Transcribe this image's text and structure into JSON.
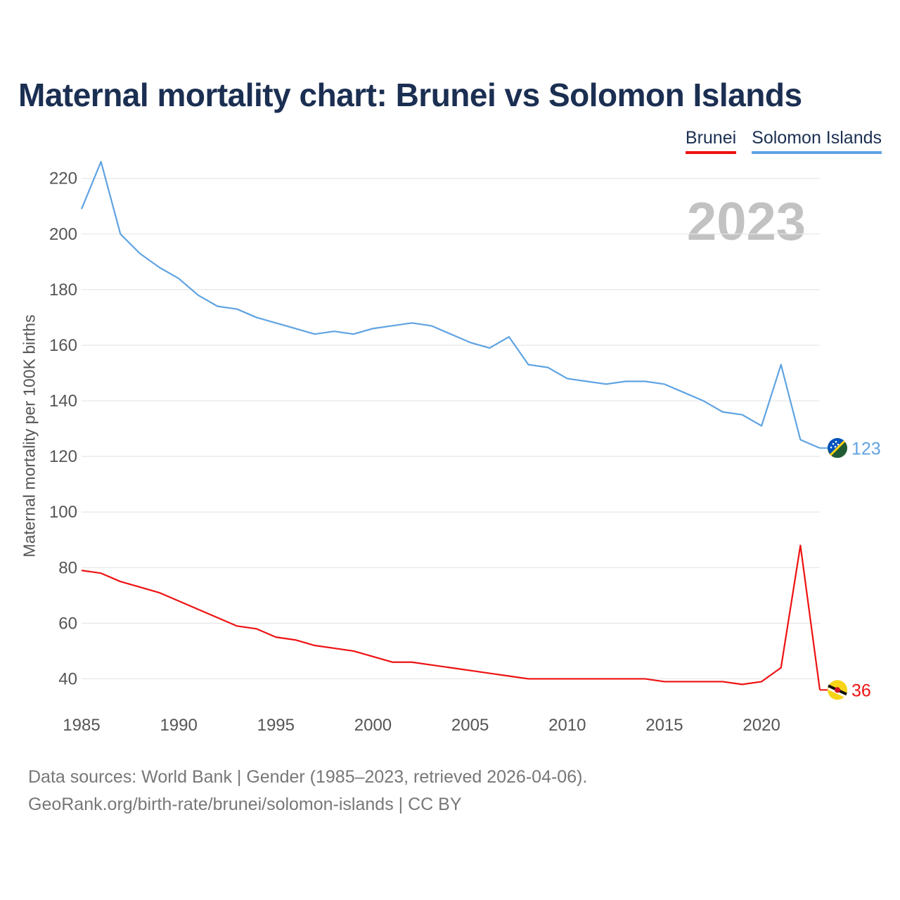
{
  "page": {
    "title": "Maternal mortality chart: Brunei vs Solomon Islands",
    "year_label": "2023",
    "source_line1": "Data sources: World Bank | Gender (1985–2023, retrieved 2026-04-06).",
    "source_line2": "GeoRank.org/birth-rate/brunei/solomon-islands | CC BY"
  },
  "legend": [
    {
      "label": "Brunei",
      "color": "#ee1111"
    },
    {
      "label": "Solomon Islands",
      "color": "#5fa3e2"
    }
  ],
  "chart_data": {
    "type": "line",
    "title": "Maternal mortality chart: Brunei vs Solomon Islands",
    "xlabel": "",
    "ylabel": "Maternal mortality per 100K births",
    "x": [
      1985,
      1986,
      1987,
      1988,
      1989,
      1990,
      1991,
      1992,
      1993,
      1994,
      1995,
      1996,
      1997,
      1998,
      1999,
      2000,
      2001,
      2002,
      2003,
      2004,
      2005,
      2006,
      2007,
      2008,
      2009,
      2010,
      2011,
      2012,
      2013,
      2014,
      2015,
      2016,
      2017,
      2018,
      2019,
      2020,
      2021,
      2022,
      2023
    ],
    "xticks": [
      1985,
      1990,
      1995,
      2000,
      2005,
      2010,
      2015,
      2020
    ],
    "yticks": [
      40,
      60,
      80,
      100,
      120,
      140,
      160,
      180,
      200,
      220
    ],
    "xlim": [
      1985,
      2023
    ],
    "ylim": [
      30,
      226
    ],
    "grid": true,
    "series": [
      {
        "name": "Brunei",
        "color": "#ee1111",
        "end_label": "36",
        "values": [
          79,
          78,
          75,
          73,
          71,
          68,
          65,
          62,
          59,
          58,
          55,
          54,
          52,
          51,
          50,
          48,
          46,
          46,
          45,
          44,
          43,
          42,
          41,
          40,
          40,
          40,
          40,
          40,
          40,
          40,
          39,
          39,
          39,
          39,
          38,
          39,
          44,
          88,
          36
        ]
      },
      {
        "name": "Solomon Islands",
        "color": "#5fa3e2",
        "end_label": "123",
        "values": [
          209,
          226,
          200,
          193,
          188,
          184,
          178,
          174,
          173,
          170,
          168,
          166,
          164,
          165,
          164,
          166,
          167,
          168,
          167,
          164,
          161,
          159,
          163,
          153,
          152,
          148,
          147,
          146,
          147,
          147,
          146,
          143,
          140,
          136,
          135,
          131,
          153,
          126,
          123
        ]
      }
    ]
  }
}
